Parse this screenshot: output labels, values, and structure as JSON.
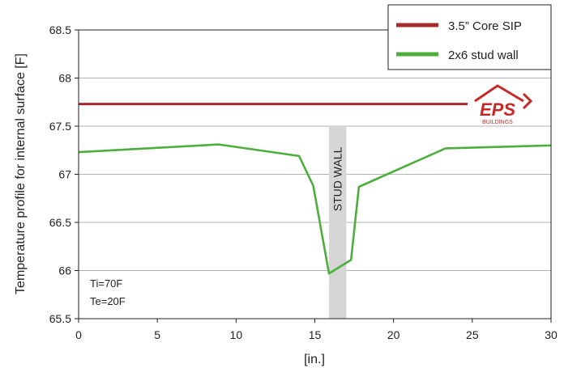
{
  "chart_data": {
    "type": "line",
    "title": "",
    "xlabel": "[in.]",
    "ylabel": "Temperature profile for internal surface [F]",
    "xlim": [
      0,
      30
    ],
    "ylim": [
      65.5,
      68.5
    ],
    "x_ticks": [
      "0",
      "5",
      "10",
      "15",
      "20",
      "25",
      "30"
    ],
    "y_ticks": [
      "65.5",
      "66",
      "66.5",
      "67",
      "67.5",
      "68",
      "68.5"
    ],
    "grid": "horizontal",
    "legend_position": "top-right",
    "series": [
      {
        "name": "3.5” Core SIP",
        "color": "#a52a2a",
        "points": [
          [
            0,
            67.73
          ],
          [
            24.7,
            67.73
          ]
        ]
      },
      {
        "name": "2x6 stud wall",
        "color": "#4caf3c",
        "points": [
          [
            0,
            67.23
          ],
          [
            8.9,
            67.31
          ],
          [
            14,
            67.19
          ],
          [
            14.9,
            66.88
          ],
          [
            15.9,
            65.97
          ],
          [
            17.3,
            66.11
          ],
          [
            17.8,
            66.87
          ],
          [
            23.3,
            67.27
          ],
          [
            30,
            67.3
          ]
        ]
      }
    ],
    "stud_band": {
      "x": [
        15.9,
        17
      ],
      "label": "STUD WALL",
      "color": "#d6d6d6"
    },
    "annotations": [
      "Ti=70F",
      "Te=20F"
    ],
    "logo": {
      "text": "EPS",
      "subtext": "BUILDINGS",
      "color": "#c62828"
    }
  }
}
